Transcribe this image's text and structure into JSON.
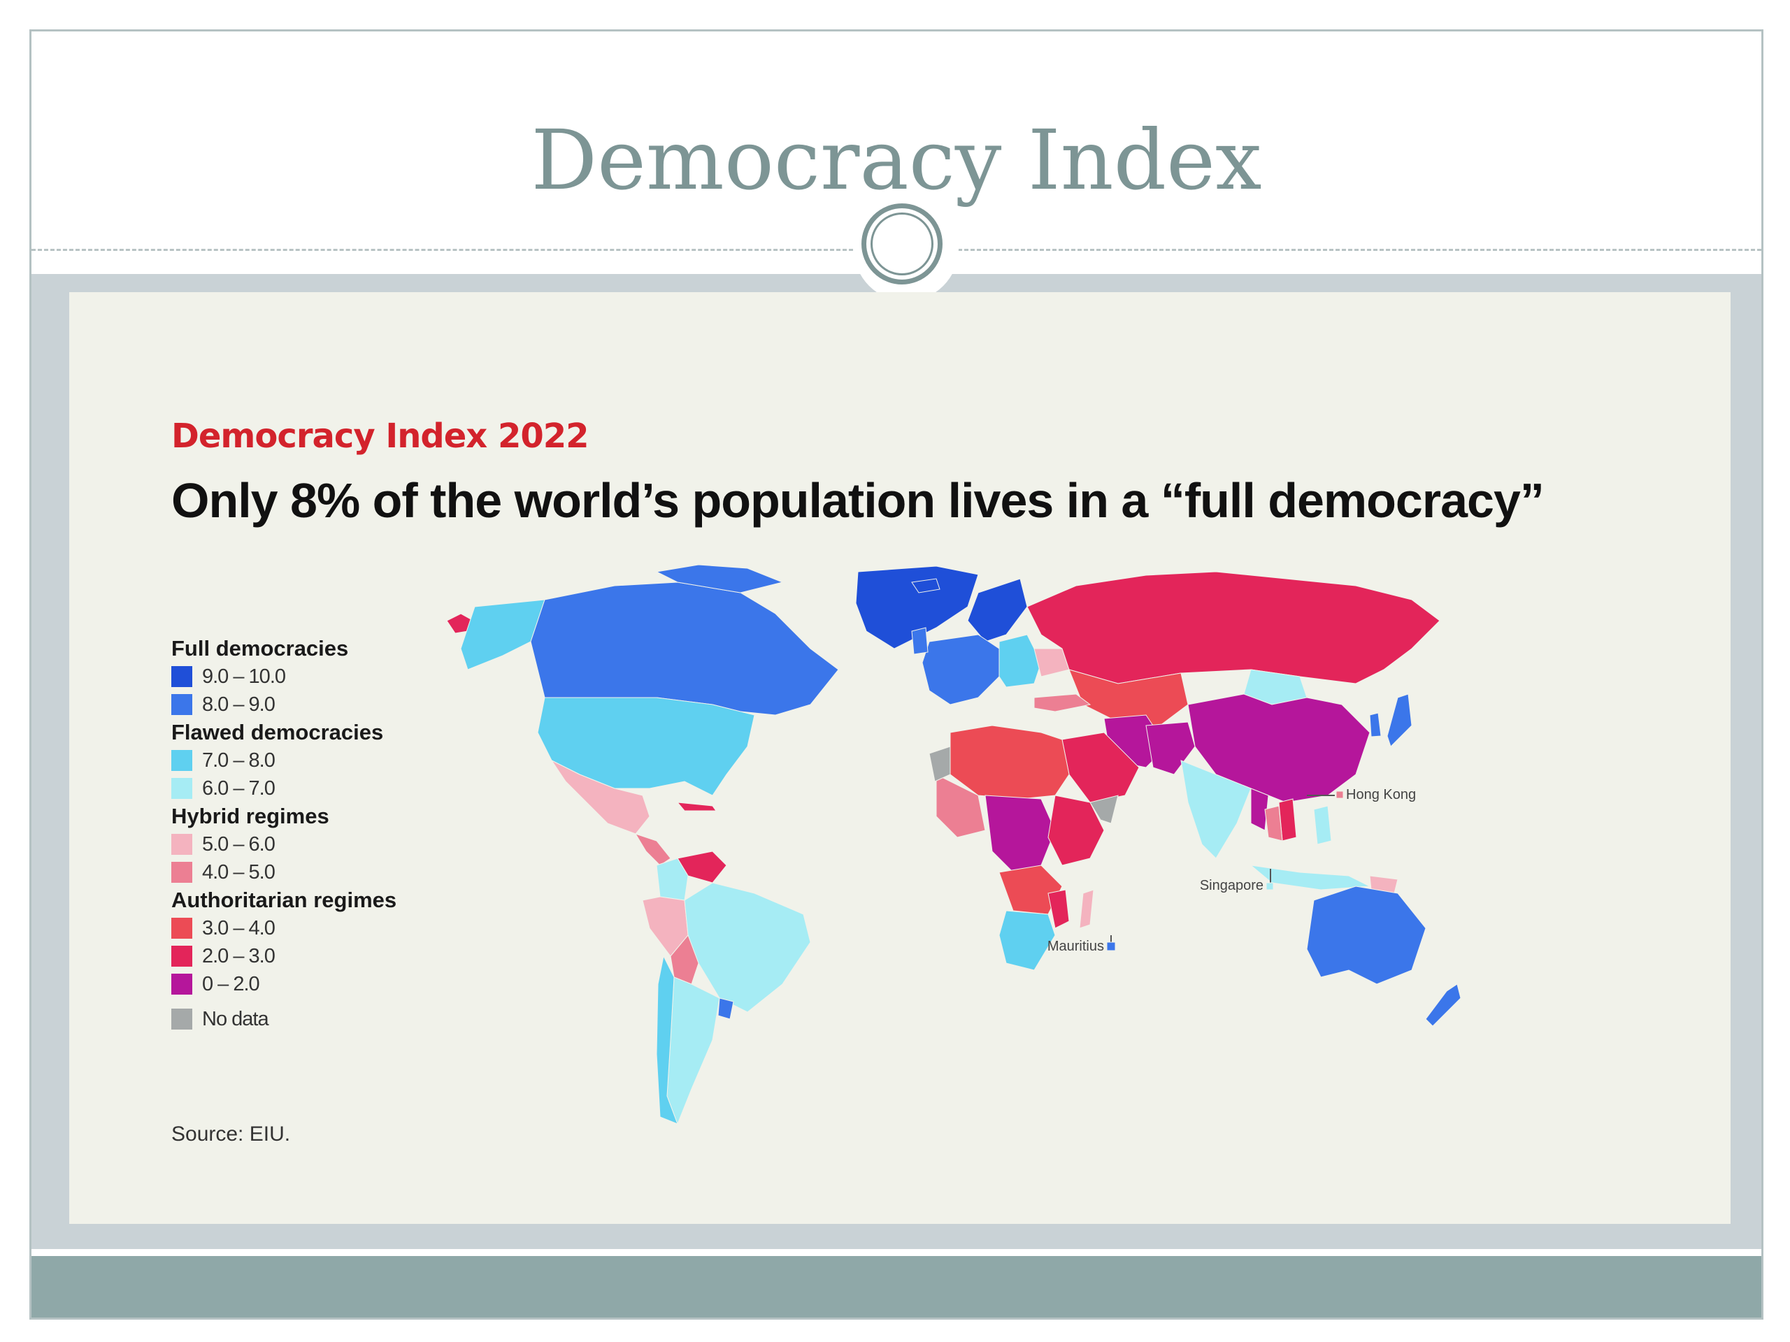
{
  "slide": {
    "title": "Democracy Index"
  },
  "figure": {
    "kicker": "Democracy Index 2022",
    "headline": "Only 8% of the world’s population lives in a “full democracy”",
    "source": "Source: EIU.",
    "legend": [
      {
        "group": "Full democracies",
        "items": [
          {
            "label": "9.0 – 10.0",
            "color": "#1f4fd8"
          },
          {
            "label": "8.0 – 9.0",
            "color": "#3b76ea"
          }
        ]
      },
      {
        "group": "Flawed democracies",
        "items": [
          {
            "label": "7.0 – 8.0",
            "color": "#5fd0f0"
          },
          {
            "label": "6.0 – 7.0",
            "color": "#a6ecf4"
          }
        ]
      },
      {
        "group": "Hybrid regimes",
        "items": [
          {
            "label": "5.0 – 6.0",
            "color": "#f4b3bf"
          },
          {
            "label": "4.0 – 5.0",
            "color": "#ec7f93"
          }
        ]
      },
      {
        "group": "Authoritarian regimes",
        "items": [
          {
            "label": "3.0 – 4.0",
            "color": "#ec4b55"
          },
          {
            "label": "2.0 – 3.0",
            "color": "#e3255a"
          },
          {
            "label": "0 – 2.0",
            "color": "#b5169b"
          }
        ]
      }
    ],
    "no_data": {
      "label": "No data",
      "color": "#a5a9a9"
    },
    "callouts": {
      "hong_kong": "Hong Kong",
      "singapore": "Singapore",
      "mauritius": "Mauritius"
    }
  }
}
